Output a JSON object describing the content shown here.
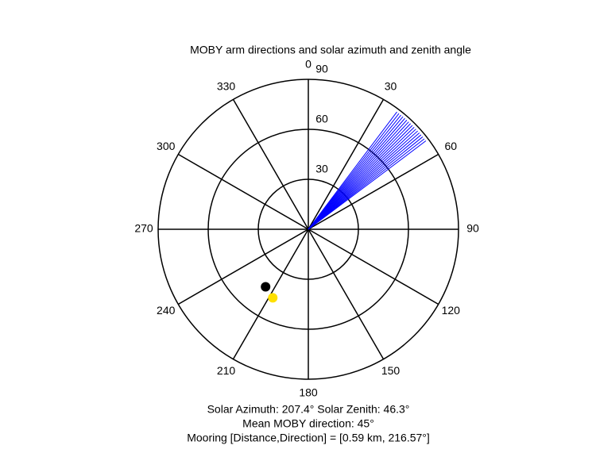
{
  "chart_data": {
    "type": "polar",
    "title": "MOBY arm directions and solar azimuth and zenith angle",
    "rlim": [
      0,
      90
    ],
    "rticks": [
      30,
      60,
      90
    ],
    "thetaticks": [
      0,
      30,
      60,
      90,
      120,
      150,
      180,
      210,
      240,
      270,
      300,
      330
    ],
    "series": [
      {
        "name": "MOBY arms",
        "kind": "rays",
        "color": "#0000ff",
        "theta": [
          37,
          38,
          39,
          40,
          41,
          42,
          43,
          44,
          45,
          46,
          47,
          48,
          49,
          50,
          51,
          52,
          53
        ]
      },
      {
        "name": "Mooring",
        "kind": "point",
        "color": "#000000",
        "theta": [
          216.57
        ],
        "r": [
          43
        ]
      },
      {
        "name": "Sun",
        "kind": "point",
        "color": "#ffe000",
        "theta": [
          207.4
        ],
        "r": [
          46.3
        ]
      }
    ],
    "notes": [
      "Solar Azimuth: 207.4°   Solar Zenith: 46.3°",
      "Mean MOBY direction: 45°",
      "Mooring [Distance,Direction] = [0.59 km, 216.57°]"
    ]
  }
}
